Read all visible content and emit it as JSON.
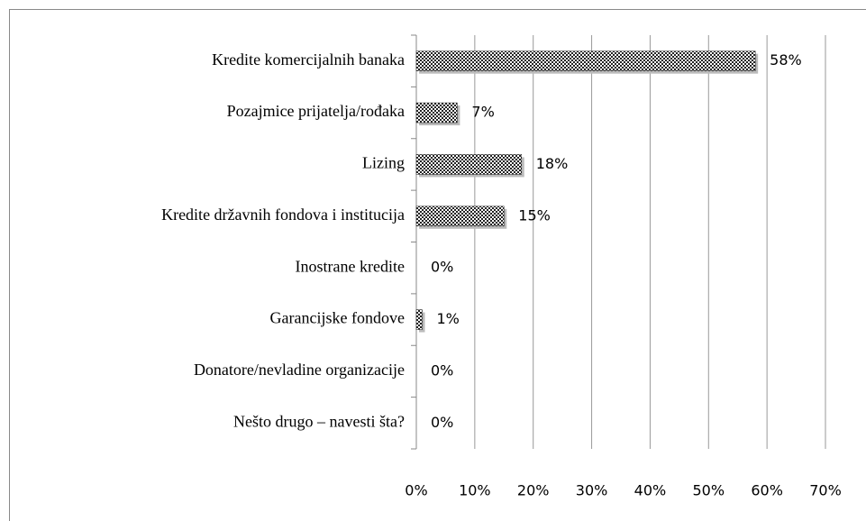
{
  "chart_data": {
    "type": "bar",
    "orientation": "horizontal",
    "categories": [
      "Kredite komercijalnih banaka",
      "Pozajmice prijatelja/rođaka",
      "Lizing",
      "Kredite državnih fondova i institucija",
      "Inostrane kredite",
      "Garancijske fondove",
      "Donatore/nevladine organizacije",
      "Nešto drugo – navesti šta?"
    ],
    "values": [
      58,
      7,
      18,
      15,
      0,
      1,
      0,
      0
    ],
    "value_labels": [
      "58%",
      "7%",
      "18%",
      "15%",
      "0%",
      "1%",
      "0%",
      "0%"
    ],
    "color": "#222222",
    "xlim": [
      0,
      70
    ],
    "xticks": [
      {
        "value": 0,
        "label": "0%"
      },
      {
        "value": 10,
        "label": "10%"
      },
      {
        "value": 20,
        "label": "20%"
      },
      {
        "value": 30,
        "label": "30%"
      },
      {
        "value": 40,
        "label": "40%"
      },
      {
        "value": 50,
        "label": "50%"
      },
      {
        "value": 60,
        "label": "60%"
      },
      {
        "value": 70,
        "label": "70%"
      }
    ],
    "grid": true
  }
}
